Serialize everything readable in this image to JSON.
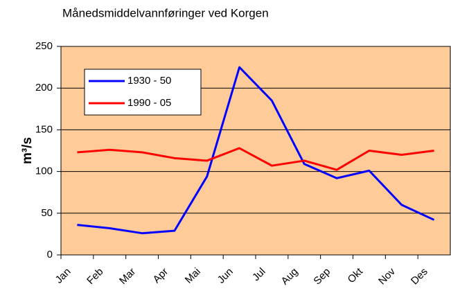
{
  "chart_data": {
    "type": "line",
    "title": "Månedsmiddelvannføringer ved Korgen",
    "ylabel": "m³/s",
    "categories": [
      "Jan",
      "Feb",
      "Mar",
      "Apr",
      "Mai",
      "Jun",
      "Jul",
      "Aug",
      "Sep",
      "Okt",
      "Nov",
      "Des"
    ],
    "series": [
      {
        "name": "1930 - 50",
        "color": "#0000ff",
        "values": [
          36,
          32,
          26,
          29,
          94,
          225,
          185,
          109,
          92,
          101,
          60,
          42
        ]
      },
      {
        "name": "1990 - 05",
        "color": "#ff0000",
        "values": [
          123,
          126,
          123,
          116,
          113,
          128,
          107,
          113,
          102,
          125,
          120,
          125
        ]
      }
    ],
    "ylim": [
      0,
      250
    ],
    "yticks": [
      0,
      50,
      100,
      150,
      200,
      250
    ],
    "grid": true,
    "background": "#ffcc99"
  }
}
